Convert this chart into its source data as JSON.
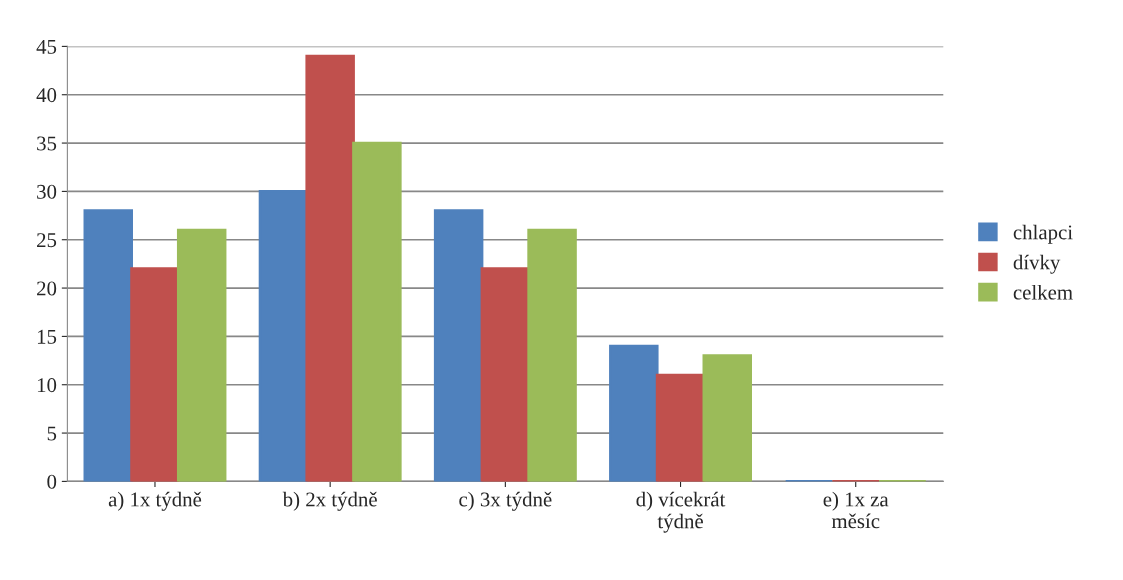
{
  "chart_data": {
    "type": "bar",
    "categories": [
      "a) 1x týdně",
      "b) 2x týdně",
      "c) 3x týdně",
      "d) vícekrát\ntýdně",
      "e) 1x za\nměsíc"
    ],
    "series": [
      {
        "name": "chlapci",
        "color": "#4f81bd",
        "values": [
          28,
          30,
          28,
          14,
          0
        ]
      },
      {
        "name": "dívky",
        "color": "#c0504d",
        "values": [
          22,
          44,
          22,
          11,
          0
        ]
      },
      {
        "name": "celkem",
        "color": "#9bbb59",
        "values": [
          26,
          35,
          26,
          13,
          0
        ]
      }
    ],
    "ylim": [
      0,
      45
    ],
    "yticks": [
      0,
      5,
      10,
      15,
      20,
      25,
      30,
      35,
      40,
      45
    ],
    "grid": "y",
    "legend": "right"
  }
}
